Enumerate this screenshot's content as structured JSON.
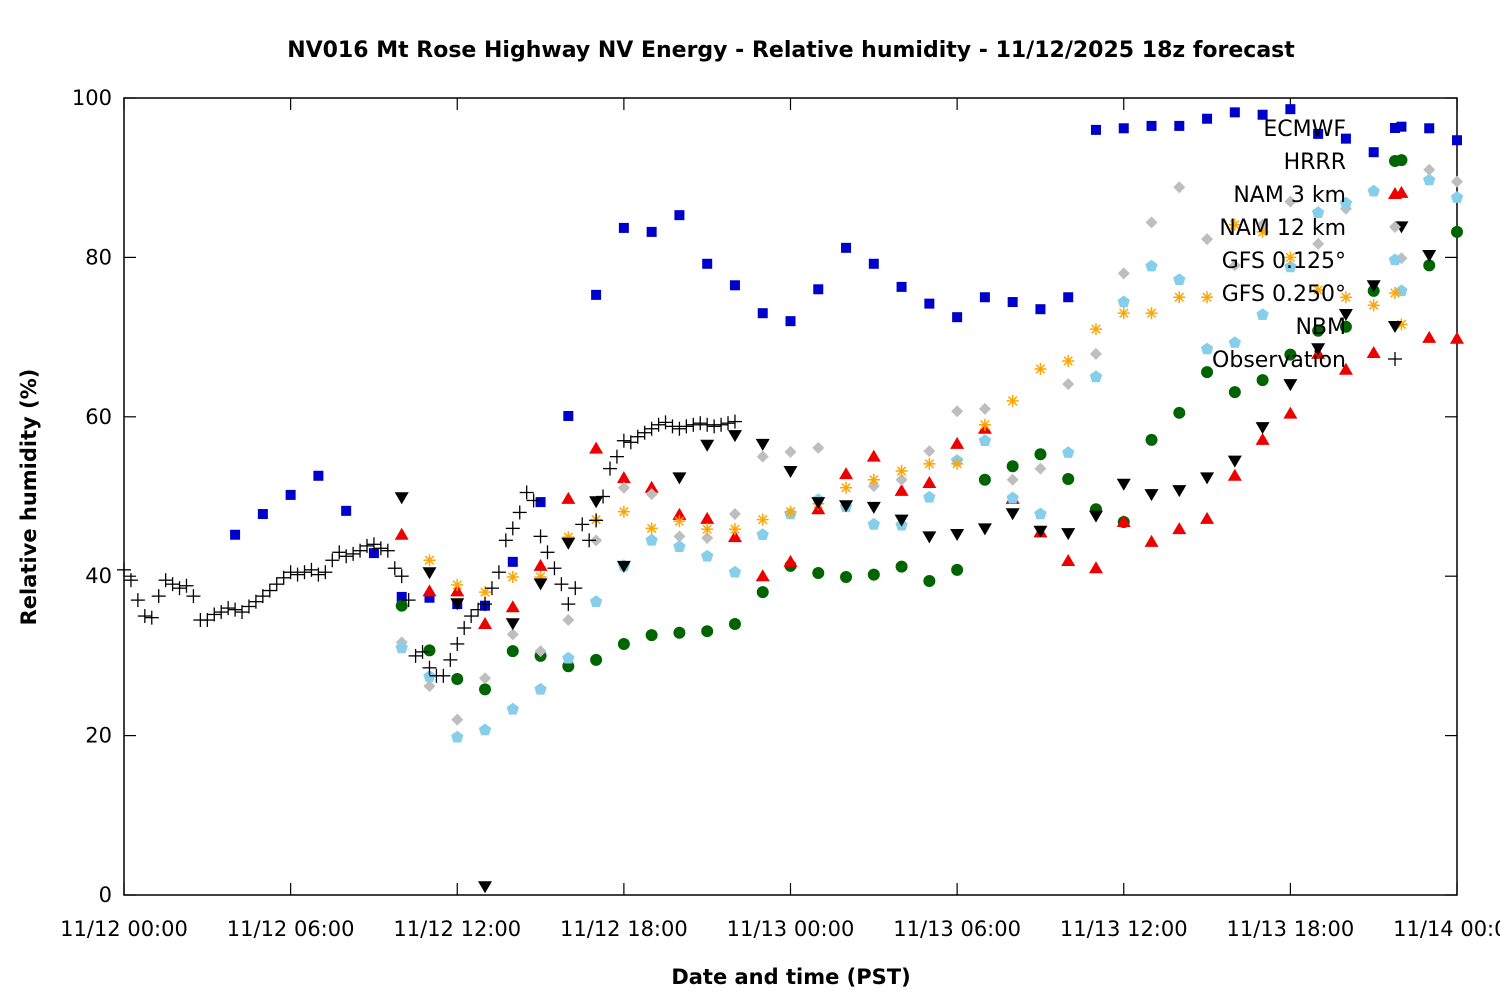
{
  "chart_data": {
    "type": "scatter",
    "title": "NV016 Mt Rose Highway NV Energy - Relative humidity - 11/12/2025 18z forecast",
    "xlabel": "Date and time (PST)",
    "ylabel": "Relative humidity (%)",
    "x_unit": "hours since 11/12 00:00",
    "xlim": [
      0,
      48
    ],
    "ylim": [
      0,
      100
    ],
    "x_ticks": [
      {
        "value": 0,
        "label": "11/12 00:00"
      },
      {
        "value": 6,
        "label": "11/12 06:00"
      },
      {
        "value": 12,
        "label": "11/12 12:00"
      },
      {
        "value": 18,
        "label": "11/12 18:00"
      },
      {
        "value": 24,
        "label": "11/13 00:00"
      },
      {
        "value": 30,
        "label": "11/13 06:00"
      },
      {
        "value": 36,
        "label": "11/13 12:00"
      },
      {
        "value": 42,
        "label": "11/13 18:00"
      },
      {
        "value": 48,
        "label": "11/14 00:00"
      }
    ],
    "y_ticks": [
      0,
      20,
      40,
      60,
      80,
      100
    ],
    "grid": false,
    "legend_position": "top-right",
    "series": [
      {
        "name": "ECMWF",
        "marker": "square",
        "color": "#0000cc",
        "x": [
          4,
          5,
          6,
          7,
          8,
          9,
          10,
          11,
          12,
          13,
          14,
          15,
          16,
          17,
          18,
          19,
          20,
          21,
          22,
          23,
          24,
          25,
          26,
          27,
          28,
          29,
          30,
          31,
          32,
          33,
          34,
          35,
          36,
          37,
          38,
          39,
          40,
          41,
          42,
          43,
          44,
          45,
          46,
          47,
          48
        ],
        "y": [
          45.2,
          47.8,
          50.2,
          52.6,
          48.2,
          42.9,
          37.4,
          37.3,
          36.5,
          36.3,
          41.8,
          49.3,
          60.1,
          75.3,
          83.7,
          83.2,
          85.3,
          79.2,
          76.5,
          73.0,
          72.0,
          76.0,
          81.2,
          79.2,
          76.3,
          74.2,
          72.5,
          75.0,
          74.4,
          73.5,
          75.0,
          96.0,
          96.2,
          96.5,
          96.5,
          97.4,
          98.2,
          97.9,
          98.6,
          95.5,
          94.9,
          93.2,
          96.4,
          96.2,
          94.7
        ]
      },
      {
        "name": "HRRR",
        "marker": "circle",
        "color": "#006400",
        "x": [
          10,
          11,
          12,
          13,
          14,
          15,
          16,
          17,
          18,
          19,
          20,
          21,
          22,
          23,
          24,
          25,
          26,
          27,
          28,
          29,
          30,
          31,
          32,
          33,
          34,
          35,
          36,
          37,
          38,
          39,
          40,
          41,
          42,
          43,
          44,
          45,
          46,
          47,
          48
        ],
        "y": [
          36.3,
          30.7,
          27.1,
          25.8,
          30.6,
          30.0,
          28.7,
          29.5,
          31.5,
          32.6,
          32.9,
          33.1,
          34.0,
          38.0,
          41.3,
          40.4,
          39.9,
          40.2,
          41.2,
          39.4,
          40.8,
          52.1,
          53.8,
          55.3,
          52.2,
          48.4,
          46.8,
          57.1,
          60.5,
          65.6,
          63.1,
          64.6,
          67.8,
          70.8,
          71.3,
          75.8,
          92.2,
          79.0,
          83.2
        ]
      },
      {
        "name": "NAM 3 km",
        "marker": "triangle",
        "color": "#ee0000",
        "x": [
          10,
          11,
          12,
          13,
          14,
          15,
          16,
          17,
          18,
          19,
          20,
          21,
          22,
          23,
          24,
          25,
          26,
          27,
          28,
          29,
          30,
          31,
          32,
          33,
          34,
          35,
          36,
          37,
          38,
          39,
          40,
          41,
          42,
          43,
          44,
          45,
          46,
          47,
          48
        ],
        "y": [
          45.2,
          38.1,
          38.1,
          34.0,
          36.1,
          41.3,
          49.7,
          56.0,
          52.3,
          51.1,
          47.7,
          47.2,
          44.9,
          40.0,
          41.8,
          48.4,
          52.8,
          55.0,
          50.7,
          51.7,
          56.6,
          58.5,
          49.7,
          45.5,
          41.9,
          41.0,
          46.8,
          44.3,
          45.9,
          47.2,
          52.6,
          57.1,
          60.4,
          67.9,
          65.9,
          68.0,
          88.1,
          69.9,
          69.8
        ]
      },
      {
        "name": "NAM 12 km",
        "marker": "diamond",
        "color": "#bebebe",
        "x": [
          10,
          11,
          12,
          13,
          14,
          15,
          16,
          17,
          18,
          19,
          20,
          21,
          22,
          23,
          24,
          25,
          27,
          28,
          29,
          30,
          31,
          32,
          33,
          34,
          35,
          36,
          37,
          38,
          39,
          40,
          41,
          42,
          43,
          44,
          46,
          47,
          48
        ],
        "y": [
          31.7,
          26.2,
          22.0,
          27.2,
          32.7,
          30.6,
          34.5,
          44.5,
          51.1,
          50.3,
          45.0,
          44.8,
          47.8,
          55.0,
          55.6,
          56.1,
          51.3,
          52.1,
          55.7,
          60.7,
          61.0,
          52.1,
          53.5,
          64.1,
          67.9,
          78.0,
          84.4,
          88.8,
          82.3,
          79.0,
          84.1,
          87.0,
          81.7,
          86.1,
          79.9,
          91.0,
          89.5
        ]
      },
      {
        "name": "GFS 0.125°",
        "marker": "pentagon",
        "color": "#87ceeb",
        "x": [
          10,
          11,
          12,
          13,
          14,
          15,
          16,
          17,
          18,
          19,
          20,
          21,
          22,
          23,
          24,
          25,
          26,
          27,
          28,
          29,
          30,
          31,
          32,
          33,
          34,
          35,
          36,
          37,
          38,
          39,
          40,
          41,
          42,
          43,
          44,
          45,
          46,
          47,
          48
        ],
        "y": [
          31.0,
          27.4,
          19.8,
          20.7,
          23.3,
          25.8,
          29.7,
          36.8,
          41.3,
          44.5,
          43.7,
          42.5,
          40.5,
          45.2,
          47.8,
          49.6,
          48.7,
          46.5,
          46.4,
          49.9,
          54.5,
          57.0,
          49.8,
          47.8,
          55.5,
          65.0,
          74.4,
          78.9,
          77.2,
          68.5,
          69.3,
          72.8,
          78.8,
          85.6,
          86.8,
          88.3,
          75.8,
          89.7,
          87.5
        ]
      },
      {
        "name": "GFS 0.250°",
        "marker": "asterisk",
        "color": "#ffa500",
        "x": [
          11,
          12,
          13,
          14,
          15,
          16,
          17,
          18,
          19,
          20,
          21,
          22,
          23,
          24,
          25,
          26,
          27,
          28,
          29,
          30,
          31,
          32,
          33,
          34,
          35,
          36,
          37,
          38,
          39,
          40,
          41,
          42,
          43,
          44,
          45,
          46
        ],
        "y": [
          42.0,
          38.9,
          38.0,
          39.9,
          39.9,
          44.9,
          47.1,
          48.1,
          46.0,
          46.9,
          45.9,
          45.9,
          47.1,
          48.1,
          49.1,
          51.1,
          52.1,
          53.2,
          54.1,
          54.1,
          59.0,
          62.0,
          66.0,
          67.0,
          71.0,
          73.0,
          73.0,
          75.0,
          75.0,
          84.1,
          83.2,
          80.0,
          75.9,
          75.0,
          74.0,
          71.6
        ]
      },
      {
        "name": "NBM",
        "marker": "triangle-down",
        "color": "#000000",
        "x": [
          10,
          11,
          12,
          13,
          14,
          15,
          16,
          17,
          18,
          20,
          21,
          22,
          23,
          24,
          25,
          26,
          27,
          28,
          29,
          30,
          31,
          32,
          33,
          34,
          35,
          36,
          37,
          38,
          39,
          40,
          41,
          42,
          43,
          44,
          45,
          46,
          47
        ],
        "y": [
          49.9,
          40.5,
          36.6,
          1.1,
          34.1,
          39.1,
          44.2,
          49.4,
          41.3,
          52.4,
          56.5,
          57.7,
          56.6,
          53.2,
          49.3,
          48.9,
          48.7,
          47.1,
          45.0,
          45.3,
          46.0,
          47.9,
          45.7,
          45.4,
          47.6,
          51.6,
          50.3,
          50.8,
          52.4,
          54.5,
          58.7,
          64.1,
          68.6,
          72.9,
          76.5,
          83.9,
          80.3
        ]
      },
      {
        "name": "Observation",
        "marker": "plus",
        "color": "#000000",
        "x": [
          0,
          0.25,
          0.5,
          0.75,
          1.0,
          1.25,
          1.5,
          1.75,
          2.0,
          2.25,
          2.5,
          2.75,
          3.0,
          3.25,
          3.5,
          3.75,
          4.0,
          4.25,
          4.5,
          4.75,
          5.0,
          5.25,
          5.5,
          5.75,
          6.0,
          6.25,
          6.5,
          6.75,
          7.0,
          7.25,
          7.5,
          7.75,
          8.0,
          8.25,
          8.5,
          8.75,
          9.0,
          9.25,
          9.5,
          9.75,
          10.0,
          10.25,
          10.5,
          10.75,
          11.0,
          11.25,
          11.5,
          11.75,
          12.0,
          12.25,
          12.5,
          12.75,
          13.0,
          13.25,
          13.5,
          13.75,
          14.0,
          14.25,
          14.5,
          14.75,
          15.0,
          15.25,
          15.5,
          15.75,
          16.0,
          16.25,
          16.5,
          16.75,
          17.0,
          17.25,
          17.5,
          17.75,
          18.0,
          18.25,
          18.5,
          18.75,
          19.0,
          19.25,
          19.5,
          19.75,
          20.0,
          20.25,
          20.5,
          20.75,
          21.0,
          21.25,
          21.5,
          21.75,
          22.0
        ],
        "y": [
          40.8,
          39.5,
          37.0,
          35.0,
          34.8,
          37.5,
          39.5,
          39.0,
          38.5,
          38.8,
          37.5,
          34.5,
          34.5,
          35.2,
          35.5,
          36.0,
          35.8,
          35.5,
          36.2,
          36.8,
          37.5,
          38.2,
          39.0,
          39.8,
          40.5,
          40.2,
          40.5,
          40.8,
          40.2,
          40.5,
          42.0,
          43.0,
          42.5,
          42.8,
          43.2,
          43.8,
          44.0,
          43.5,
          43.2,
          41.0,
          40.0,
          37.0,
          30.0,
          30.5,
          28.5,
          27.5,
          27.5,
          29.5,
          31.5,
          33.5,
          35.0,
          35.8,
          36.5,
          38.5,
          40.5,
          44.5,
          46.0,
          48.0,
          50.5,
          49.5,
          45.0,
          43.0,
          41.0,
          39.0,
          36.5,
          38.5,
          46.5,
          44.5,
          47.0,
          50.0,
          53.5,
          55.0,
          57.0,
          56.8,
          57.5,
          58.0,
          58.5,
          59.0,
          59.3,
          58.8,
          58.5,
          58.8,
          59.0,
          59.2,
          59.0,
          58.8,
          59.0,
          59.2,
          59.4
        ]
      }
    ]
  }
}
